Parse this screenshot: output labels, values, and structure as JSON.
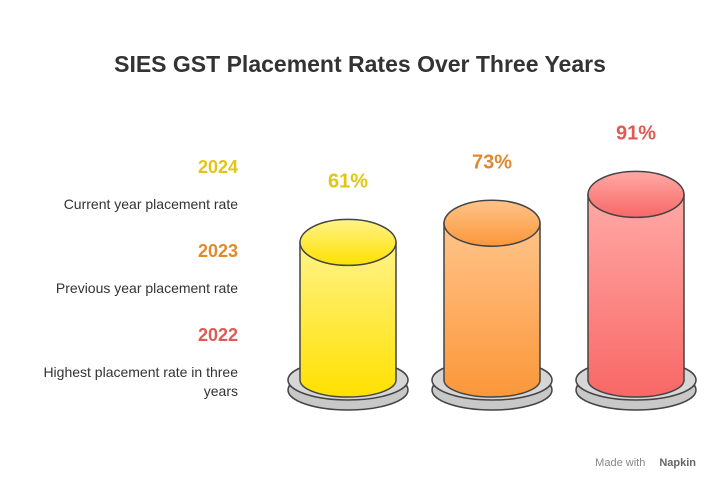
{
  "chart_data": {
    "type": "bar",
    "title": "SIES GST Placement Rates Over Three Years",
    "categories": [
      "2024",
      "2023",
      "2022"
    ],
    "descriptions": [
      "Current year placement rate",
      "Previous year placement rate",
      "Highest placement rate in three years"
    ],
    "values": [
      61,
      73,
      91
    ],
    "value_labels": [
      "61%",
      "73%",
      "91%"
    ],
    "colors": [
      "#e2c615",
      "#e08a30",
      "#e05a55"
    ]
  },
  "footer": {
    "text": "Made with",
    "brand": "Napkin"
  }
}
